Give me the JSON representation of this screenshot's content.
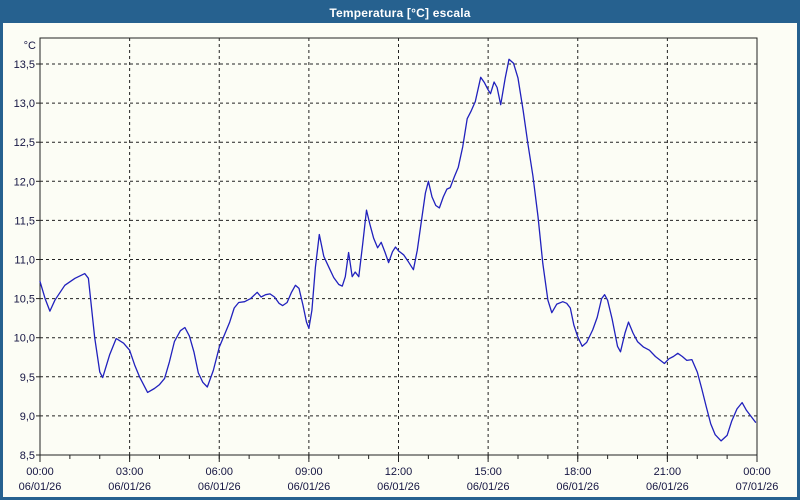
{
  "window": {
    "title": "Temperatura [°C] escala"
  },
  "chart_data": {
    "type": "line",
    "title": "Temperatura [°C] escala",
    "colors": {
      "titlebar": "#26618f",
      "window_border": "#26618f",
      "background": "#fcfdf5",
      "plot_border": "#222222",
      "grid": "#222222",
      "line": "#2121bd",
      "label": "#151542"
    },
    "y_axis": {
      "unit": "°C",
      "min": 8.5,
      "max": 13.5,
      "tick_step": 0.5,
      "tick_labels": [
        "8,5",
        "9,0",
        "9,5",
        "10,0",
        "10,5",
        "11,0",
        "11,5",
        "12,0",
        "12,5",
        "13,0",
        "13,5"
      ],
      "grid": "dashed"
    },
    "x_axis": {
      "range_hours": [
        0,
        24
      ],
      "minor_tick_hours": 1,
      "grid": "dashed",
      "major_ticks": [
        {
          "hour": 0,
          "time": "00:00",
          "date": "06/01/26"
        },
        {
          "hour": 3,
          "time": "03:00",
          "date": "06/01/26"
        },
        {
          "hour": 6,
          "time": "06:00",
          "date": "06/01/26"
        },
        {
          "hour": 9,
          "time": "09:00",
          "date": "06/01/26"
        },
        {
          "hour": 12,
          "time": "12:00",
          "date": "06/01/26"
        },
        {
          "hour": 15,
          "time": "15:00",
          "date": "06/01/26"
        },
        {
          "hour": 18,
          "time": "18:00",
          "date": "06/01/26"
        },
        {
          "hour": 21,
          "time": "21:00",
          "date": "06/01/26"
        },
        {
          "hour": 24,
          "time": "00:00",
          "date": "07/01/26"
        }
      ]
    },
    "series": [
      {
        "name": "Temperatura",
        "color": "#2121bd",
        "points": [
          [
            0,
            10.72
          ],
          [
            0.17,
            10.5
          ],
          [
            0.33,
            10.34
          ],
          [
            0.5,
            10.48
          ],
          [
            0.83,
            10.67
          ],
          [
            1.17,
            10.76
          ],
          [
            1.5,
            10.82
          ],
          [
            1.62,
            10.76
          ],
          [
            1.83,
            10.0
          ],
          [
            2.0,
            9.56
          ],
          [
            2.1,
            9.49
          ],
          [
            2.33,
            9.78
          ],
          [
            2.55,
            9.99
          ],
          [
            2.8,
            9.93
          ],
          [
            3.0,
            9.84
          ],
          [
            3.17,
            9.65
          ],
          [
            3.33,
            9.5
          ],
          [
            3.6,
            9.3
          ],
          [
            3.83,
            9.35
          ],
          [
            4.0,
            9.4
          ],
          [
            4.17,
            9.48
          ],
          [
            4.33,
            9.69
          ],
          [
            4.5,
            9.95
          ],
          [
            4.7,
            10.09
          ],
          [
            4.85,
            10.13
          ],
          [
            5.0,
            10.02
          ],
          [
            5.15,
            9.82
          ],
          [
            5.3,
            9.55
          ],
          [
            5.45,
            9.43
          ],
          [
            5.6,
            9.37
          ],
          [
            5.8,
            9.58
          ],
          [
            6.0,
            9.88
          ],
          [
            6.2,
            10.06
          ],
          [
            6.35,
            10.2
          ],
          [
            6.5,
            10.38
          ],
          [
            6.65,
            10.45
          ],
          [
            6.85,
            10.46
          ],
          [
            7.05,
            10.5
          ],
          [
            7.27,
            10.58
          ],
          [
            7.4,
            10.52
          ],
          [
            7.55,
            10.55
          ],
          [
            7.7,
            10.56
          ],
          [
            7.85,
            10.52
          ],
          [
            8.0,
            10.44
          ],
          [
            8.12,
            10.41
          ],
          [
            8.27,
            10.45
          ],
          [
            8.42,
            10.58
          ],
          [
            8.55,
            10.67
          ],
          [
            8.67,
            10.63
          ],
          [
            8.8,
            10.42
          ],
          [
            8.92,
            10.2
          ],
          [
            9.0,
            10.12
          ],
          [
            9.1,
            10.35
          ],
          [
            9.22,
            10.9
          ],
          [
            9.35,
            11.32
          ],
          [
            9.5,
            11.04
          ],
          [
            9.67,
            10.9
          ],
          [
            9.83,
            10.77
          ],
          [
            10.0,
            10.68
          ],
          [
            10.12,
            10.66
          ],
          [
            10.22,
            10.78
          ],
          [
            10.33,
            11.09
          ],
          [
            10.45,
            10.78
          ],
          [
            10.55,
            10.84
          ],
          [
            10.67,
            10.78
          ],
          [
            10.8,
            11.2
          ],
          [
            10.93,
            11.63
          ],
          [
            11.05,
            11.44
          ],
          [
            11.17,
            11.27
          ],
          [
            11.3,
            11.15
          ],
          [
            11.42,
            11.22
          ],
          [
            11.55,
            11.09
          ],
          [
            11.67,
            10.96
          ],
          [
            11.8,
            11.1
          ],
          [
            11.9,
            11.16
          ],
          [
            12.0,
            11.11
          ],
          [
            12.17,
            11.06
          ],
          [
            12.33,
            10.97
          ],
          [
            12.5,
            10.87
          ],
          [
            12.63,
            11.12
          ],
          [
            12.77,
            11.5
          ],
          [
            12.9,
            11.85
          ],
          [
            13.0,
            12.0
          ],
          [
            13.12,
            11.8
          ],
          [
            13.25,
            11.69
          ],
          [
            13.37,
            11.66
          ],
          [
            13.5,
            11.8
          ],
          [
            13.62,
            11.9
          ],
          [
            13.73,
            11.92
          ],
          [
            13.87,
            12.06
          ],
          [
            14.0,
            12.18
          ],
          [
            14.15,
            12.44
          ],
          [
            14.3,
            12.8
          ],
          [
            14.42,
            12.89
          ],
          [
            14.57,
            13.02
          ],
          [
            14.75,
            13.33
          ],
          [
            14.88,
            13.26
          ],
          [
            15.0,
            13.17
          ],
          [
            15.08,
            13.12
          ],
          [
            15.2,
            13.27
          ],
          [
            15.3,
            13.2
          ],
          [
            15.42,
            12.98
          ],
          [
            15.57,
            13.32
          ],
          [
            15.7,
            13.56
          ],
          [
            15.85,
            13.51
          ],
          [
            16.0,
            13.32
          ],
          [
            16.17,
            12.91
          ],
          [
            16.33,
            12.48
          ],
          [
            16.5,
            12.07
          ],
          [
            16.67,
            11.55
          ],
          [
            16.83,
            10.95
          ],
          [
            17.0,
            10.48
          ],
          [
            17.13,
            10.32
          ],
          [
            17.3,
            10.43
          ],
          [
            17.5,
            10.46
          ],
          [
            17.63,
            10.44
          ],
          [
            17.75,
            10.38
          ],
          [
            17.87,
            10.16
          ],
          [
            18.0,
            10.01
          ],
          [
            18.15,
            9.89
          ],
          [
            18.3,
            9.94
          ],
          [
            18.5,
            10.1
          ],
          [
            18.65,
            10.26
          ],
          [
            18.8,
            10.5
          ],
          [
            18.9,
            10.55
          ],
          [
            19.0,
            10.48
          ],
          [
            19.15,
            10.24
          ],
          [
            19.33,
            9.89
          ],
          [
            19.43,
            9.82
          ],
          [
            19.58,
            10.06
          ],
          [
            19.7,
            10.2
          ],
          [
            19.85,
            10.06
          ],
          [
            20.0,
            9.95
          ],
          [
            20.2,
            9.88
          ],
          [
            20.4,
            9.84
          ],
          [
            20.6,
            9.76
          ],
          [
            20.9,
            9.67
          ],
          [
            21.05,
            9.73
          ],
          [
            21.2,
            9.76
          ],
          [
            21.35,
            9.8
          ],
          [
            21.5,
            9.76
          ],
          [
            21.65,
            9.71
          ],
          [
            21.82,
            9.72
          ],
          [
            22.0,
            9.56
          ],
          [
            22.15,
            9.35
          ],
          [
            22.3,
            9.12
          ],
          [
            22.45,
            8.9
          ],
          [
            22.6,
            8.76
          ],
          [
            22.8,
            8.68
          ],
          [
            23.0,
            8.75
          ],
          [
            23.15,
            8.93
          ],
          [
            23.33,
            9.09
          ],
          [
            23.5,
            9.17
          ],
          [
            23.65,
            9.07
          ],
          [
            23.83,
            8.98
          ],
          [
            23.95,
            8.92
          ]
        ]
      }
    ]
  }
}
